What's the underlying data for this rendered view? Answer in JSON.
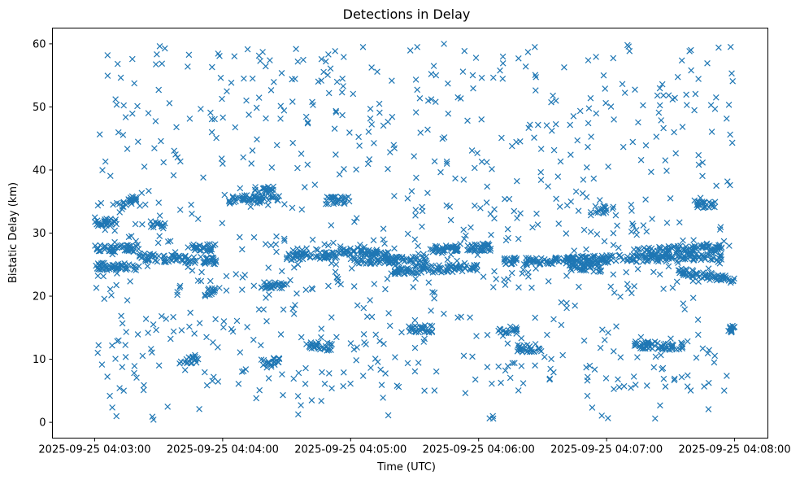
{
  "chart_data": {
    "type": "scatter",
    "title": "Detections in Delay",
    "xlabel": "Time (UTC)",
    "ylabel": "Bistatic Delay (km)",
    "x_unit": "minutes since 2025-09-25 04:03:00",
    "xlim": [
      -0.33,
      5.26
    ],
    "ylim": [
      -2.5,
      62.5
    ],
    "x_ticks": [
      0,
      1,
      2,
      3,
      4,
      5
    ],
    "x_tick_labels": [
      "2025-09-25 04:03:00",
      "2025-09-25 04:04:00",
      "2025-09-25 04:05:00",
      "2025-09-25 04:06:00",
      "2025-09-25 04:07:00",
      "2025-09-25 04:08:00"
    ],
    "y_ticks": [
      0,
      10,
      20,
      30,
      40,
      50,
      60
    ],
    "y_tick_labels": [
      "0",
      "10",
      "20",
      "30",
      "40",
      "50",
      "60"
    ],
    "marker": "x",
    "color": "#1f77b4",
    "series": [
      {
        "name": "Detections",
        "points_note": "approximately 2000 detections sampled from visible structure",
        "tracks": [
          {
            "x": [
              0.0,
              0.35
            ],
            "y": [
              27.5,
              27.6
            ]
          },
          {
            "x": [
              0.0,
              0.35
            ],
            "y": [
              24.8,
              24.5
            ]
          },
          {
            "x": [
              0.0,
              0.2
            ],
            "y": [
              31.5,
              32.0
            ]
          },
          {
            "x": [
              0.2,
              0.35
            ],
            "y": [
              34.0,
              36.0
            ]
          },
          {
            "x": [
              0.45,
              0.55
            ],
            "y": [
              31.2,
              31.2
            ]
          },
          {
            "x": [
              0.35,
              0.95
            ],
            "y": [
              26.2,
              25.6
            ]
          },
          {
            "x": [
              0.75,
              0.95
            ],
            "y": [
              27.8,
              27.6
            ]
          },
          {
            "x": [
              0.85,
              0.95
            ],
            "y": [
              20.5,
              21.0
            ]
          },
          {
            "x": [
              0.7,
              0.8
            ],
            "y": [
              9.9,
              9.9
            ]
          },
          {
            "x": [
              1.05,
              1.45
            ],
            "y": [
              35.4,
              35.4
            ]
          },
          {
            "x": [
              1.25,
              1.4
            ],
            "y": [
              36.8,
              36.8
            ]
          },
          {
            "x": [
              1.3,
              1.45
            ],
            "y": [
              9.6,
              9.6
            ]
          },
          {
            "x": [
              1.3,
              1.5
            ],
            "y": [
              21.7,
              21.7
            ]
          },
          {
            "x": [
              1.5,
              1.9
            ],
            "y": [
              26.3,
              26.5
            ]
          },
          {
            "x": [
              1.65,
              1.85
            ],
            "y": [
              12.2,
              12.0
            ]
          },
          {
            "x": [
              1.8,
              2.0
            ],
            "y": [
              35.2,
              35.2
            ]
          },
          {
            "x": [
              1.9,
              2.3
            ],
            "y": [
              27.2,
              26.5
            ]
          },
          {
            "x": [
              2.0,
              2.6
            ],
            "y": [
              25.6,
              25.8
            ]
          },
          {
            "x": [
              2.3,
              3.0
            ],
            "y": [
              24.0,
              24.6
            ]
          },
          {
            "x": [
              2.45,
              2.65
            ],
            "y": [
              14.8,
              14.8
            ]
          },
          {
            "x": [
              2.6,
              3.1
            ],
            "y": [
              27.3,
              27.8
            ]
          },
          {
            "x": [
              3.15,
              3.3
            ],
            "y": [
              14.6,
              14.6
            ]
          },
          {
            "x": [
              3.3,
              3.5
            ],
            "y": [
              11.7,
              11.7
            ]
          },
          {
            "x": [
              3.2,
              4.9
            ],
            "y": [
              25.5,
              26.3
            ]
          },
          {
            "x": [
              3.7,
              4.0
            ],
            "y": [
              25.0,
              24.2
            ]
          },
          {
            "x": [
              3.9,
              4.0
            ],
            "y": [
              33.7,
              33.7
            ]
          },
          {
            "x": [
              4.2,
              4.6
            ],
            "y": [
              12.3,
              12.0
            ]
          },
          {
            "x": [
              4.2,
              4.9
            ],
            "y": [
              27.0,
              27.8
            ]
          },
          {
            "x": [
              4.55,
              5.0
            ],
            "y": [
              24.0,
              22.5
            ]
          },
          {
            "x": [
              4.7,
              4.85
            ],
            "y": [
              34.5,
              34.5
            ]
          },
          {
            "x": [
              4.95,
              5.0
            ],
            "y": [
              14.7,
              14.7
            ]
          }
        ]
      }
    ]
  }
}
